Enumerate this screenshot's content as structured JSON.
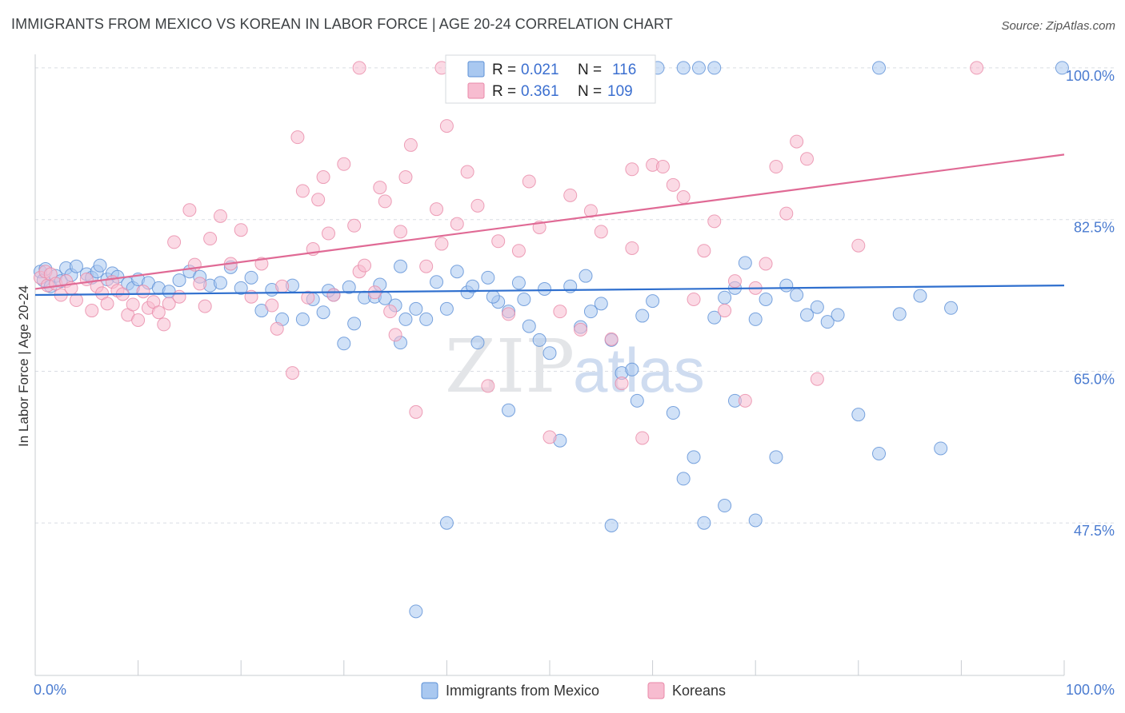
{
  "title": "IMMIGRANTS FROM MEXICO VS KOREAN IN LABOR FORCE | AGE 20-24 CORRELATION CHART",
  "source": "Source: ZipAtlas.com",
  "watermark": {
    "zip": "ZIP",
    "atlas": "atlas"
  },
  "colors": {
    "mexico_fill": "#a9c8f0",
    "mexico_stroke": "#5b8fd6",
    "mexico_line": "#2f6fce",
    "korean_fill": "#f7bcd0",
    "korean_stroke": "#e889a8",
    "korean_line": "#e06a95",
    "tick_label": "#4a7bd0",
    "grid": "#d9dde3"
  },
  "legend": {
    "r_label": "R =",
    "n_label": "N =",
    "rows": [
      {
        "series": "mexico",
        "r": "0.021",
        "n": "116"
      },
      {
        "series": "korean",
        "r": "0.361",
        "n": "109"
      }
    ]
  },
  "bottom_legend": [
    {
      "series": "mexico",
      "label": "Immigrants from Mexico"
    },
    {
      "series": "korean",
      "label": "Koreans"
    }
  ],
  "chart_data": {
    "type": "scatter",
    "title": "IMMIGRANTS FROM MEXICO VS KOREAN IN LABOR FORCE | AGE 20-24 CORRELATION CHART",
    "xlabel": "",
    "ylabel": "In Labor Force | Age 20-24",
    "xlim": [
      0,
      100
    ],
    "ylim": [
      30,
      102
    ],
    "x_tick_labels": [
      "0.0%",
      "100.0%"
    ],
    "y_ticks": [
      47.5,
      65.0,
      82.5,
      100.0
    ],
    "y_tick_labels": [
      "47.5%",
      "65.0%",
      "82.5%",
      "100.0%"
    ],
    "grid": true,
    "legend_position": "top-center",
    "series": [
      {
        "name": "Immigrants from Mexico",
        "r": 0.021,
        "n": 116,
        "trend": {
          "x": [
            0,
            100
          ],
          "y": [
            73.8,
            74.9
          ]
        },
        "points": [
          [
            0.5,
            76.5
          ],
          [
            0.8,
            75.5
          ],
          [
            1.0,
            76.8
          ],
          [
            1.5,
            74.8
          ],
          [
            2.0,
            76.0
          ],
          [
            2.5,
            75.4
          ],
          [
            3.0,
            76.9
          ],
          [
            3.5,
            76.1
          ],
          [
            4.0,
            77.1
          ],
          [
            5.0,
            76.2
          ],
          [
            5.5,
            75.8
          ],
          [
            6.0,
            76.5
          ],
          [
            6.3,
            77.2
          ],
          [
            7.0,
            75.6
          ],
          [
            7.5,
            76.3
          ],
          [
            8.0,
            75.9
          ],
          [
            9.0,
            75.1
          ],
          [
            9.5,
            74.6
          ],
          [
            10.0,
            75.6
          ],
          [
            11.0,
            75.2
          ],
          [
            12.0,
            74.6
          ],
          [
            13.0,
            74.2
          ],
          [
            14.0,
            75.5
          ],
          [
            15.0,
            76.5
          ],
          [
            16.0,
            75.9
          ],
          [
            17.0,
            74.9
          ],
          [
            18.0,
            75.2
          ],
          [
            19.0,
            77.0
          ],
          [
            20.0,
            74.6
          ],
          [
            21.0,
            75.8
          ],
          [
            22.0,
            72.0
          ],
          [
            23.0,
            74.4
          ],
          [
            24.0,
            71.0
          ],
          [
            25.0,
            74.9
          ],
          [
            26.0,
            71.0
          ],
          [
            27.0,
            73.3
          ],
          [
            28.0,
            71.8
          ],
          [
            29.0,
            73.8
          ],
          [
            30.0,
            68.2
          ],
          [
            31.0,
            70.5
          ],
          [
            32.0,
            73.5
          ],
          [
            33.0,
            73.6
          ],
          [
            34.0,
            73.4
          ],
          [
            35.0,
            72.6
          ],
          [
            35.5,
            68.3
          ],
          [
            36.0,
            71.0
          ],
          [
            37.0,
            72.2
          ],
          [
            38.0,
            71.0
          ],
          [
            39.0,
            75.3
          ],
          [
            40.0,
            72.2
          ],
          [
            41.0,
            76.5
          ],
          [
            42.0,
            74.1
          ],
          [
            43.0,
            68.3
          ],
          [
            45.0,
            73.0
          ],
          [
            46.0,
            71.9
          ],
          [
            47.0,
            75.2
          ],
          [
            48.0,
            70.2
          ],
          [
            49.0,
            68.6
          ],
          [
            50.0,
            67.1
          ],
          [
            52.0,
            74.8
          ],
          [
            53.0,
            70.1
          ],
          [
            54.0,
            71.9
          ],
          [
            55.0,
            72.8
          ],
          [
            56.0,
            68.6
          ],
          [
            57.0,
            64.8
          ],
          [
            58.0,
            65.2
          ],
          [
            59.0,
            71.4
          ],
          [
            60.0,
            73.1
          ],
          [
            62.0,
            60.2
          ],
          [
            64.0,
            55.1
          ],
          [
            65.0,
            47.5
          ],
          [
            66.0,
            71.2
          ],
          [
            67.0,
            73.5
          ],
          [
            68.0,
            74.6
          ],
          [
            69.0,
            77.5
          ],
          [
            70.0,
            71.0
          ],
          [
            71.0,
            73.3
          ],
          [
            72.0,
            55.1
          ],
          [
            73.0,
            74.9
          ],
          [
            74.0,
            73.8
          ],
          [
            75.0,
            71.5
          ],
          [
            76.0,
            72.4
          ],
          [
            77.0,
            70.7
          ],
          [
            78.0,
            71.5
          ],
          [
            80.0,
            60.0
          ],
          [
            82.0,
            55.5
          ],
          [
            84.0,
            71.6
          ],
          [
            86.0,
            73.7
          ],
          [
            88.0,
            56.1
          ],
          [
            89.0,
            72.3
          ],
          [
            40.0,
            47.5
          ],
          [
            37.0,
            37.3
          ],
          [
            46.0,
            60.5
          ],
          [
            51.0,
            57.0
          ],
          [
            56.0,
            47.2
          ],
          [
            67.0,
            49.5
          ],
          [
            70.0,
            47.8
          ],
          [
            58.5,
            61.6
          ],
          [
            63.0,
            52.6
          ],
          [
            68.0,
            61.6
          ],
          [
            28.5,
            74.3
          ],
          [
            30.5,
            74.7
          ],
          [
            33.5,
            75.0
          ],
          [
            35.5,
            77.1
          ],
          [
            42.5,
            74.8
          ],
          [
            44.0,
            75.8
          ],
          [
            44.5,
            73.6
          ],
          [
            47.5,
            73.3
          ],
          [
            49.5,
            74.5
          ],
          [
            53.5,
            76.0
          ],
          [
            60.5,
            100.0
          ],
          [
            63.0,
            100.0
          ],
          [
            64.5,
            100.0
          ],
          [
            66.0,
            100.0
          ],
          [
            82.0,
            100.0
          ],
          [
            99.8,
            100.0
          ]
        ]
      },
      {
        "name": "Koreans",
        "r": 0.361,
        "n": 109,
        "trend": {
          "x": [
            0,
            100
          ],
          "y": [
            74.5,
            90.0
          ]
        },
        "points": [
          [
            0.5,
            75.8
          ],
          [
            1.0,
            76.5
          ],
          [
            1.2,
            74.9
          ],
          [
            1.5,
            76.2
          ],
          [
            2.0,
            75.1
          ],
          [
            2.5,
            73.8
          ],
          [
            3.0,
            75.4
          ],
          [
            3.5,
            74.6
          ],
          [
            4.0,
            73.2
          ],
          [
            5.0,
            75.6
          ],
          [
            5.5,
            72.0
          ],
          [
            6.0,
            74.8
          ],
          [
            6.5,
            74.0
          ],
          [
            7.0,
            72.8
          ],
          [
            7.5,
            75.3
          ],
          [
            8.0,
            74.3
          ],
          [
            8.5,
            73.9
          ],
          [
            9.0,
            71.5
          ],
          [
            9.5,
            72.7
          ],
          [
            10.0,
            70.9
          ],
          [
            10.5,
            74.2
          ],
          [
            11.0,
            72.3
          ],
          [
            11.5,
            73.0
          ],
          [
            12.0,
            71.8
          ],
          [
            12.5,
            70.4
          ],
          [
            13.0,
            72.8
          ],
          [
            13.5,
            79.9
          ],
          [
            14.0,
            73.6
          ],
          [
            15.0,
            83.6
          ],
          [
            15.5,
            77.3
          ],
          [
            16.0,
            75.1
          ],
          [
            16.5,
            72.5
          ],
          [
            17.0,
            80.3
          ],
          [
            18.0,
            82.9
          ],
          [
            19.0,
            77.4
          ],
          [
            20.0,
            81.3
          ],
          [
            21.0,
            73.6
          ],
          [
            22.0,
            77.4
          ],
          [
            23.0,
            72.6
          ],
          [
            23.5,
            69.9
          ],
          [
            24.0,
            74.8
          ],
          [
            25.0,
            64.8
          ],
          [
            25.5,
            92.0
          ],
          [
            26.0,
            85.8
          ],
          [
            26.5,
            73.5
          ],
          [
            27.0,
            79.1
          ],
          [
            27.5,
            84.8
          ],
          [
            28.0,
            87.4
          ],
          [
            28.5,
            80.9
          ],
          [
            29.0,
            73.8
          ],
          [
            30.0,
            88.9
          ],
          [
            31.0,
            81.8
          ],
          [
            31.5,
            76.5
          ],
          [
            32.0,
            77.2
          ],
          [
            33.0,
            74.1
          ],
          [
            33.5,
            86.2
          ],
          [
            34.0,
            84.6
          ],
          [
            34.5,
            71.9
          ],
          [
            35.0,
            69.2
          ],
          [
            35.5,
            81.1
          ],
          [
            36.0,
            87.4
          ],
          [
            36.5,
            91.1
          ],
          [
            37.0,
            60.3
          ],
          [
            38.0,
            77.1
          ],
          [
            39.0,
            83.7
          ],
          [
            39.5,
            79.7
          ],
          [
            40.0,
            93.3
          ],
          [
            41.0,
            82.0
          ],
          [
            42.0,
            88.0
          ],
          [
            43.0,
            84.1
          ],
          [
            44.0,
            63.3
          ],
          [
            45.0,
            80.0
          ],
          [
            46.0,
            71.6
          ],
          [
            47.0,
            78.9
          ],
          [
            48.0,
            86.9
          ],
          [
            49.0,
            81.6
          ],
          [
            50.0,
            57.4
          ],
          [
            51.0,
            71.9
          ],
          [
            52.0,
            85.3
          ],
          [
            53.0,
            69.8
          ],
          [
            54.0,
            83.5
          ],
          [
            55.0,
            81.1
          ],
          [
            56.0,
            68.7
          ],
          [
            57.0,
            63.6
          ],
          [
            58.0,
            88.3
          ],
          [
            59.0,
            57.3
          ],
          [
            60.0,
            88.8
          ],
          [
            61.0,
            88.6
          ],
          [
            62.0,
            86.5
          ],
          [
            63.0,
            85.1
          ],
          [
            65.0,
            78.9
          ],
          [
            70.0,
            74.6
          ],
          [
            73.0,
            83.2
          ],
          [
            76.0,
            64.1
          ],
          [
            80.0,
            79.5
          ],
          [
            64.0,
            73.3
          ],
          [
            67.0,
            72.0
          ],
          [
            68.0,
            75.4
          ],
          [
            69.0,
            61.6
          ],
          [
            71.0,
            77.4
          ],
          [
            31.5,
            100.0
          ],
          [
            39.5,
            100.0
          ],
          [
            40.5,
            100.0
          ],
          [
            91.5,
            100.0
          ],
          [
            74.0,
            91.5
          ],
          [
            72.0,
            88.6
          ],
          [
            75.0,
            89.5
          ],
          [
            66.0,
            82.3
          ],
          [
            58.0,
            79.2
          ]
        ]
      }
    ]
  }
}
